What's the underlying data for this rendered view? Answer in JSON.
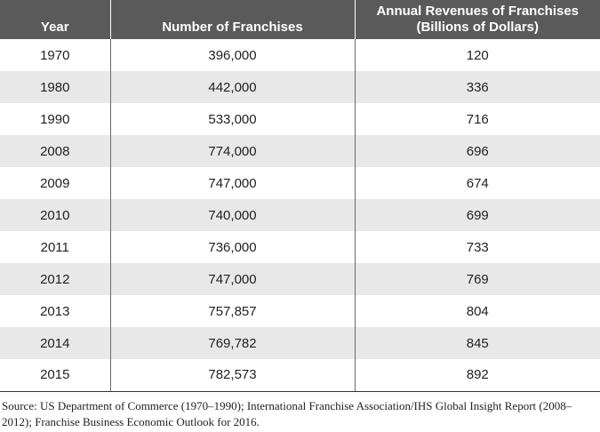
{
  "table": {
    "headers": [
      "Year",
      "Number of Franchises",
      "Annual Revenues of Franchises (Billions of Dollars)"
    ],
    "rows": [
      [
        "1970",
        "396,000",
        "120"
      ],
      [
        "1980",
        "442,000",
        "336"
      ],
      [
        "1990",
        "533,000",
        "716"
      ],
      [
        "2008",
        "774,000",
        "696"
      ],
      [
        "2009",
        "747,000",
        "674"
      ],
      [
        "2010",
        "740,000",
        "699"
      ],
      [
        "2011",
        "736,000",
        "733"
      ],
      [
        "2012",
        "747,000",
        "769"
      ],
      [
        "2013",
        "757,857",
        "804"
      ],
      [
        "2014",
        "769,782",
        "845"
      ],
      [
        "2015",
        "782,573",
        "892"
      ]
    ]
  },
  "source_note": "Source: US Department of Commerce (1970–1990); International Franchise Association/IHS Global Insight Report (2008–2012); Franchise Business Economic Outlook for 2016."
}
